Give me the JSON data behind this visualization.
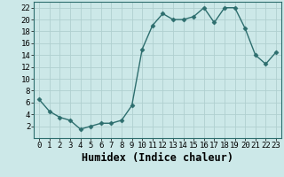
{
  "x": [
    0,
    1,
    2,
    3,
    4,
    5,
    6,
    7,
    8,
    9,
    10,
    11,
    12,
    13,
    14,
    15,
    16,
    17,
    18,
    19,
    20,
    21,
    22,
    23
  ],
  "y": [
    6.5,
    4.5,
    3.5,
    3.0,
    1.5,
    2.0,
    2.5,
    2.5,
    3.0,
    5.5,
    15.0,
    19.0,
    21.0,
    20.0,
    20.0,
    20.5,
    22.0,
    19.5,
    22.0,
    22.0,
    18.5,
    14.0,
    12.5,
    14.5
  ],
  "xlabel": "Humidex (Indice chaleur)",
  "xlim": [
    -0.5,
    23.5
  ],
  "ylim": [
    0,
    23
  ],
  "yticks": [
    2,
    4,
    6,
    8,
    10,
    12,
    14,
    16,
    18,
    20,
    22
  ],
  "xticks": [
    0,
    1,
    2,
    3,
    4,
    5,
    6,
    7,
    8,
    9,
    10,
    11,
    12,
    13,
    14,
    15,
    16,
    17,
    18,
    19,
    20,
    21,
    22,
    23
  ],
  "line_color": "#2d6e6e",
  "marker": "D",
  "marker_size": 2.5,
  "bg_color": "#cce8e8",
  "grid_color": "#b0d0d0",
  "tick_label_fontsize": 6.5,
  "xlabel_fontsize": 8.5,
  "linewidth": 1.0
}
